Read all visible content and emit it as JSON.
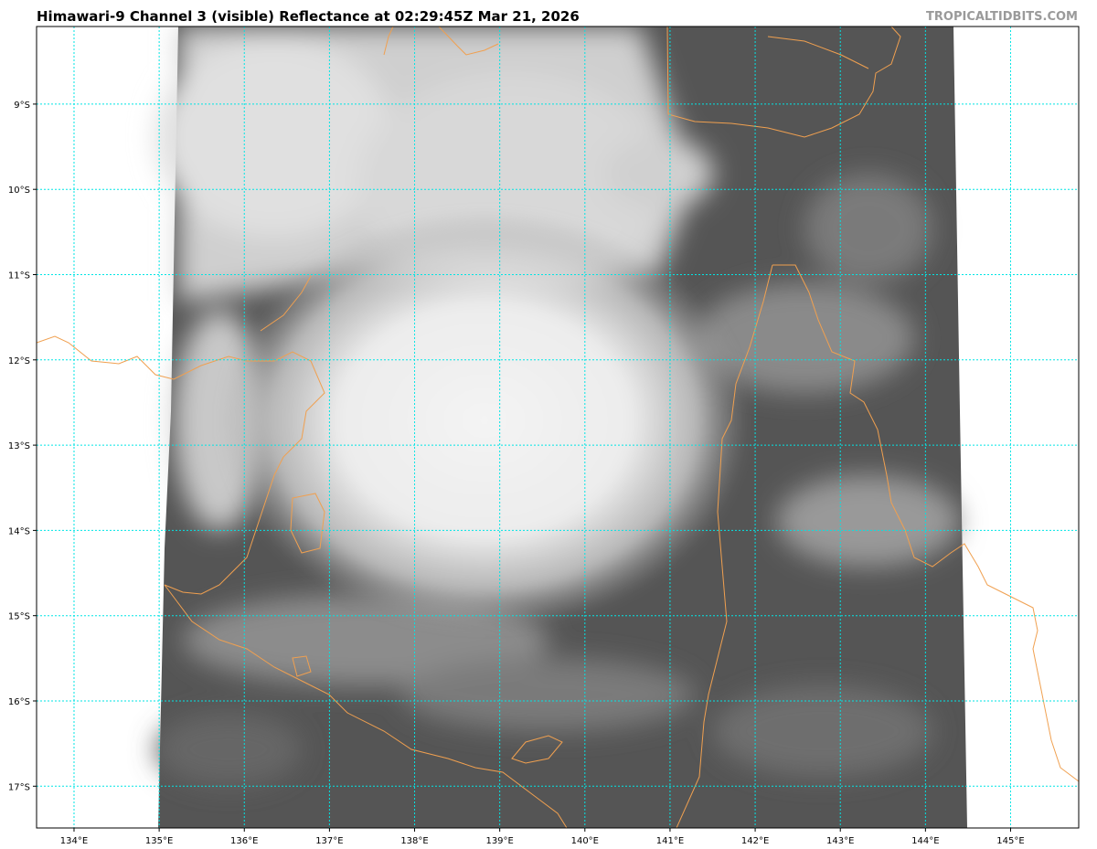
{
  "header": {
    "title": "Himawari-9 Channel 3 (visible) Reflectance at 02:29:45Z Mar 21, 2026",
    "credit": "TROPICALTIDBITS.COM"
  },
  "map": {
    "projection": "plate carree",
    "lon_range": [
      133.56,
      145.8
    ],
    "lat_range": [
      -17.49,
      -8.09
    ],
    "longitudes": [
      134,
      135,
      136,
      137,
      138,
      139,
      140,
      141,
      142,
      143,
      144,
      145
    ],
    "latitudes": [
      -9,
      -10,
      -11,
      -12,
      -13,
      -14,
      -15,
      -16,
      -17
    ],
    "lon_labels": [
      "134°E",
      "135°E",
      "136°E",
      "137°E",
      "138°E",
      "139°E",
      "140°E",
      "141°E",
      "142°E",
      "143°E",
      "144°E",
      "145°E"
    ],
    "lat_labels": [
      "9°S",
      "10°S",
      "11°S",
      "12°S",
      "13°S",
      "14°S",
      "15°S",
      "16°S",
      "17°S"
    ],
    "colors": {
      "grid": "#00e5e5",
      "coastline": "#f0a050",
      "imagery_dark": "#4a4a4a",
      "cloud": "#f2f2f2"
    }
  }
}
